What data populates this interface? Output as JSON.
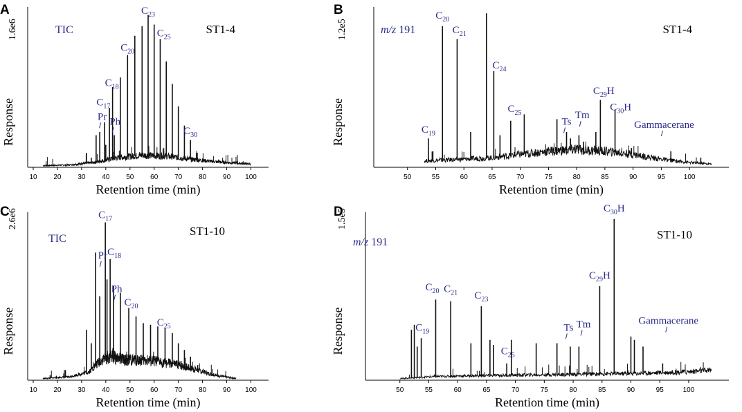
{
  "colors": {
    "trace": "#111111",
    "label": "#2b2b8c",
    "axis": "#000000"
  },
  "chart_data": [
    {
      "panel": "A",
      "type": "line",
      "mode_label": "TIC",
      "mode_italic": false,
      "sample": "ST1-4",
      "xlabel": "Retention time (min)",
      "ylabel": "Response",
      "y_scale": "1.6e6",
      "xlim": [
        10,
        105
      ],
      "xticks": [
        10,
        20,
        30,
        40,
        50,
        60,
        70,
        80,
        90,
        100
      ],
      "baseline": [
        [
          14,
          0.01
        ],
        [
          25,
          0.015
        ],
        [
          35,
          0.03
        ],
        [
          45,
          0.06
        ],
        [
          55,
          0.075
        ],
        [
          65,
          0.07
        ],
        [
          75,
          0.05
        ],
        [
          85,
          0.035
        ],
        [
          100,
          0.02
        ]
      ],
      "peaks": [
        [
          30,
          0.03
        ],
        [
          32,
          0.09
        ],
        [
          34,
          0.06
        ],
        [
          36,
          0.2
        ],
        [
          37.5,
          0.22
        ],
        [
          39.5,
          0.28
        ],
        [
          40,
          0.14
        ],
        [
          41.5,
          0.37
        ],
        [
          42.8,
          0.5
        ],
        [
          43.5,
          0.2
        ],
        [
          46,
          0.56
        ],
        [
          49,
          0.7
        ],
        [
          52,
          0.82
        ],
        [
          55,
          0.88
        ],
        [
          57.5,
          0.95
        ],
        [
          60,
          0.89
        ],
        [
          62.5,
          0.8
        ],
        [
          65,
          0.66
        ],
        [
          67.5,
          0.52
        ],
        [
          70,
          0.38
        ],
        [
          72.5,
          0.26
        ],
        [
          75,
          0.17
        ],
        [
          77.5,
          0.09
        ],
        [
          80,
          0.05
        ]
      ],
      "labels": [
        {
          "main": "C",
          "sub": "17",
          "sup": "",
          "x": 39,
          "y": 0.36
        },
        {
          "main": "C",
          "sub": "18",
          "sup": "",
          "x": 42.5,
          "y": 0.48
        },
        {
          "main": "Pr",
          "sub": "",
          "sup": "",
          "x": 38.5,
          "y": 0.27,
          "tick": true
        },
        {
          "main": "Ph",
          "sub": "",
          "sup": "",
          "x": 43.8,
          "y": 0.24,
          "tick": true
        },
        {
          "main": "C",
          "sub": "20",
          "sup": "",
          "x": 49,
          "y": 0.7
        },
        {
          "main": "C",
          "sub": "23",
          "sup": "",
          "x": 57.5,
          "y": 0.93
        },
        {
          "main": "C",
          "sub": "25",
          "sup": "",
          "x": 64,
          "y": 0.79
        },
        {
          "main": "C",
          "sub": "30",
          "sup": "",
          "x": 75,
          "y": 0.18
        }
      ]
    },
    {
      "panel": "B",
      "type": "line",
      "mode_label": "m/z  191",
      "mode_italic": true,
      "sample": "ST1-4",
      "xlabel": "Retention time (min)",
      "ylabel": "Response",
      "y_scale": "1.2e5",
      "xlim": [
        45,
        106
      ],
      "xticks": [
        50,
        55,
        60,
        65,
        70,
        75,
        80,
        85,
        90,
        95,
        100
      ],
      "baseline": [
        [
          53,
          0.04
        ],
        [
          60,
          0.05
        ],
        [
          65,
          0.06
        ],
        [
          70,
          0.08
        ],
        [
          75,
          0.1
        ],
        [
          80,
          0.11
        ],
        [
          85,
          0.1
        ],
        [
          90,
          0.08
        ],
        [
          95,
          0.05
        ],
        [
          100,
          0.03
        ],
        [
          104,
          0.02
        ]
      ],
      "peaks": [
        [
          53.7,
          0.18
        ],
        [
          54.5,
          0.1
        ],
        [
          56.2,
          0.88
        ],
        [
          58.8,
          0.8
        ],
        [
          61.2,
          0.22
        ],
        [
          64,
          0.96
        ],
        [
          65.3,
          0.6
        ],
        [
          66.4,
          0.2
        ],
        [
          68.3,
          0.29
        ],
        [
          70.7,
          0.33
        ],
        [
          76.5,
          0.3
        ],
        [
          78.2,
          0.22
        ],
        [
          78.9,
          0.18
        ],
        [
          80.4,
          0.2
        ],
        [
          81.2,
          0.16
        ],
        [
          83.4,
          0.22
        ],
        [
          84.2,
          0.42
        ],
        [
          86.8,
          0.36
        ],
        [
          89.7,
          0.12
        ],
        [
          96.7,
          0.1
        ],
        [
          102,
          0.06
        ]
      ],
      "labels": [
        {
          "main": "C",
          "sub": "19",
          "sup": "",
          "x": 53.7,
          "y": 0.19
        },
        {
          "main": "C",
          "sub": "20",
          "sup": "",
          "x": 56.2,
          "y": 0.9
        },
        {
          "main": "C",
          "sub": "21",
          "sup": "",
          "x": 59.2,
          "y": 0.81
        },
        {
          "main": "C",
          "sub": "24",
          "sup": "",
          "x": 66.3,
          "y": 0.59
        },
        {
          "main": "C",
          "sub": "25",
          "sup": "",
          "x": 69,
          "y": 0.32
        },
        {
          "main": "Ts",
          "sub": "",
          "sup": "",
          "x": 78.2,
          "y": 0.24,
          "tick": true
        },
        {
          "main": "Tm",
          "sub": "",
          "sup": "",
          "x": 81,
          "y": 0.28,
          "tick": true
        },
        {
          "main": "C",
          "sub": "29",
          "sup": "H",
          "x": 84.8,
          "y": 0.43
        },
        {
          "main": "C",
          "sub": "30",
          "sup": "H",
          "x": 87.8,
          "y": 0.33
        },
        {
          "main": "Gammacerane",
          "sub": "",
          "sup": "",
          "x": 95.5,
          "y": 0.22,
          "tick": true
        }
      ]
    },
    {
      "panel": "C",
      "type": "line",
      "mode_label": "TIC",
      "mode_italic": false,
      "sample": "ST1-10",
      "xlabel": "Retention time (min)",
      "ylabel": "Response",
      "y_scale": "2.6e6",
      "xlim": [
        10,
        105
      ],
      "xticks": [
        10,
        20,
        30,
        40,
        50,
        60,
        70,
        80,
        90,
        100
      ],
      "baseline": [
        [
          14,
          0.01
        ],
        [
          25,
          0.02
        ],
        [
          33,
          0.05
        ],
        [
          38,
          0.12
        ],
        [
          42,
          0.14
        ],
        [
          48,
          0.12
        ],
        [
          55,
          0.12
        ],
        [
          62,
          0.11
        ],
        [
          70,
          0.09
        ],
        [
          78,
          0.06
        ],
        [
          85,
          0.03
        ],
        [
          94,
          0.01
        ]
      ],
      "peaks": [
        [
          17,
          0.03
        ],
        [
          25,
          0.02
        ],
        [
          30,
          0.04
        ],
        [
          32,
          0.3
        ],
        [
          34,
          0.22
        ],
        [
          35.8,
          0.76
        ],
        [
          37.5,
          0.5
        ],
        [
          39.8,
          0.94
        ],
        [
          40.5,
          0.6
        ],
        [
          41.8,
          0.72
        ],
        [
          43.2,
          0.56
        ],
        [
          46,
          0.52
        ],
        [
          49.5,
          0.43
        ],
        [
          52.5,
          0.38
        ],
        [
          55.5,
          0.34
        ],
        [
          58.5,
          0.33
        ],
        [
          61.5,
          0.32
        ],
        [
          64.5,
          0.31
        ],
        [
          67.5,
          0.28
        ],
        [
          70,
          0.22
        ],
        [
          72.5,
          0.18
        ],
        [
          75,
          0.14
        ],
        [
          78,
          0.09
        ]
      ],
      "labels": [
        {
          "main": "C",
          "sub": "17",
          "sup": "",
          "x": 39.8,
          "y": 0.94
        },
        {
          "main": "Pr",
          "sub": "",
          "sup": "",
          "x": 38.7,
          "y": 0.7,
          "tick": true
        },
        {
          "main": "C",
          "sub": "18",
          "sup": "",
          "x": 43.5,
          "y": 0.72
        },
        {
          "main": "Ph",
          "sub": "",
          "sup": "",
          "x": 44.5,
          "y": 0.5,
          "tick": true
        },
        {
          "main": "C",
          "sub": "20",
          "sup": "",
          "x": 50.5,
          "y": 0.42
        },
        {
          "main": "C",
          "sub": "25",
          "sup": "",
          "x": 64,
          "y": 0.3
        }
      ]
    },
    {
      "panel": "D",
      "type": "line",
      "mode_label": "m/z  191",
      "mode_italic": true,
      "sample": "ST1-10",
      "xlabel": "Retention time (min)",
      "ylabel": "Response",
      "y_scale": "1.5e5",
      "xlim": [
        45,
        106
      ],
      "xticks": [
        50,
        55,
        60,
        65,
        70,
        75,
        80,
        85,
        90,
        95,
        100
      ],
      "baseline": [
        [
          50,
          0.01
        ],
        [
          55,
          0.02
        ],
        [
          60,
          0.025
        ],
        [
          70,
          0.03
        ],
        [
          80,
          0.035
        ],
        [
          90,
          0.04
        ],
        [
          100,
          0.05
        ],
        [
          104,
          0.06
        ]
      ],
      "peaks": [
        [
          52,
          0.3
        ],
        [
          52.5,
          0.33
        ],
        [
          53,
          0.2
        ],
        [
          53.7,
          0.25
        ],
        [
          56.2,
          0.48
        ],
        [
          58.8,
          0.47
        ],
        [
          62.3,
          0.22
        ],
        [
          64.1,
          0.44
        ],
        [
          65.6,
          0.24
        ],
        [
          66.2,
          0.21
        ],
        [
          68.5,
          0.1
        ],
        [
          69.3,
          0.24
        ],
        [
          73.6,
          0.22
        ],
        [
          77.2,
          0.22
        ],
        [
          79.5,
          0.2
        ],
        [
          81,
          0.2
        ],
        [
          84.6,
          0.56
        ],
        [
          87.1,
          0.96
        ],
        [
          90,
          0.26
        ],
        [
          90.6,
          0.24
        ],
        [
          92.1,
          0.2
        ],
        [
          95.5,
          0.1
        ]
      ],
      "labels": [
        {
          "main": "C",
          "sub": "19",
          "sup": "",
          "x": 53.9,
          "y": 0.27
        },
        {
          "main": "C",
          "sub": "20",
          "sup": "",
          "x": 55.6,
          "y": 0.51
        },
        {
          "main": "C",
          "sub": "21",
          "sup": "",
          "x": 58.8,
          "y": 0.5
        },
        {
          "main": "C",
          "sub": "23",
          "sup": "",
          "x": 64.1,
          "y": 0.46
        },
        {
          "main": "C",
          "sub": "25",
          "sup": "",
          "x": 68.7,
          "y": 0.13
        },
        {
          "main": "Ts",
          "sub": "",
          "sup": "",
          "x": 79.2,
          "y": 0.27,
          "tick": true
        },
        {
          "main": "Tm",
          "sub": "",
          "sup": "",
          "x": 81.8,
          "y": 0.29,
          "tick": true
        },
        {
          "main": "C",
          "sub": "29",
          "sup": "H",
          "x": 84.6,
          "y": 0.58
        },
        {
          "main": "C",
          "sub": "30",
          "sup": "H",
          "x": 87.1,
          "y": 0.98
        },
        {
          "main": "Gammacerane",
          "sub": "",
          "sup": "",
          "x": 96.5,
          "y": 0.31,
          "tick": true
        }
      ]
    }
  ]
}
